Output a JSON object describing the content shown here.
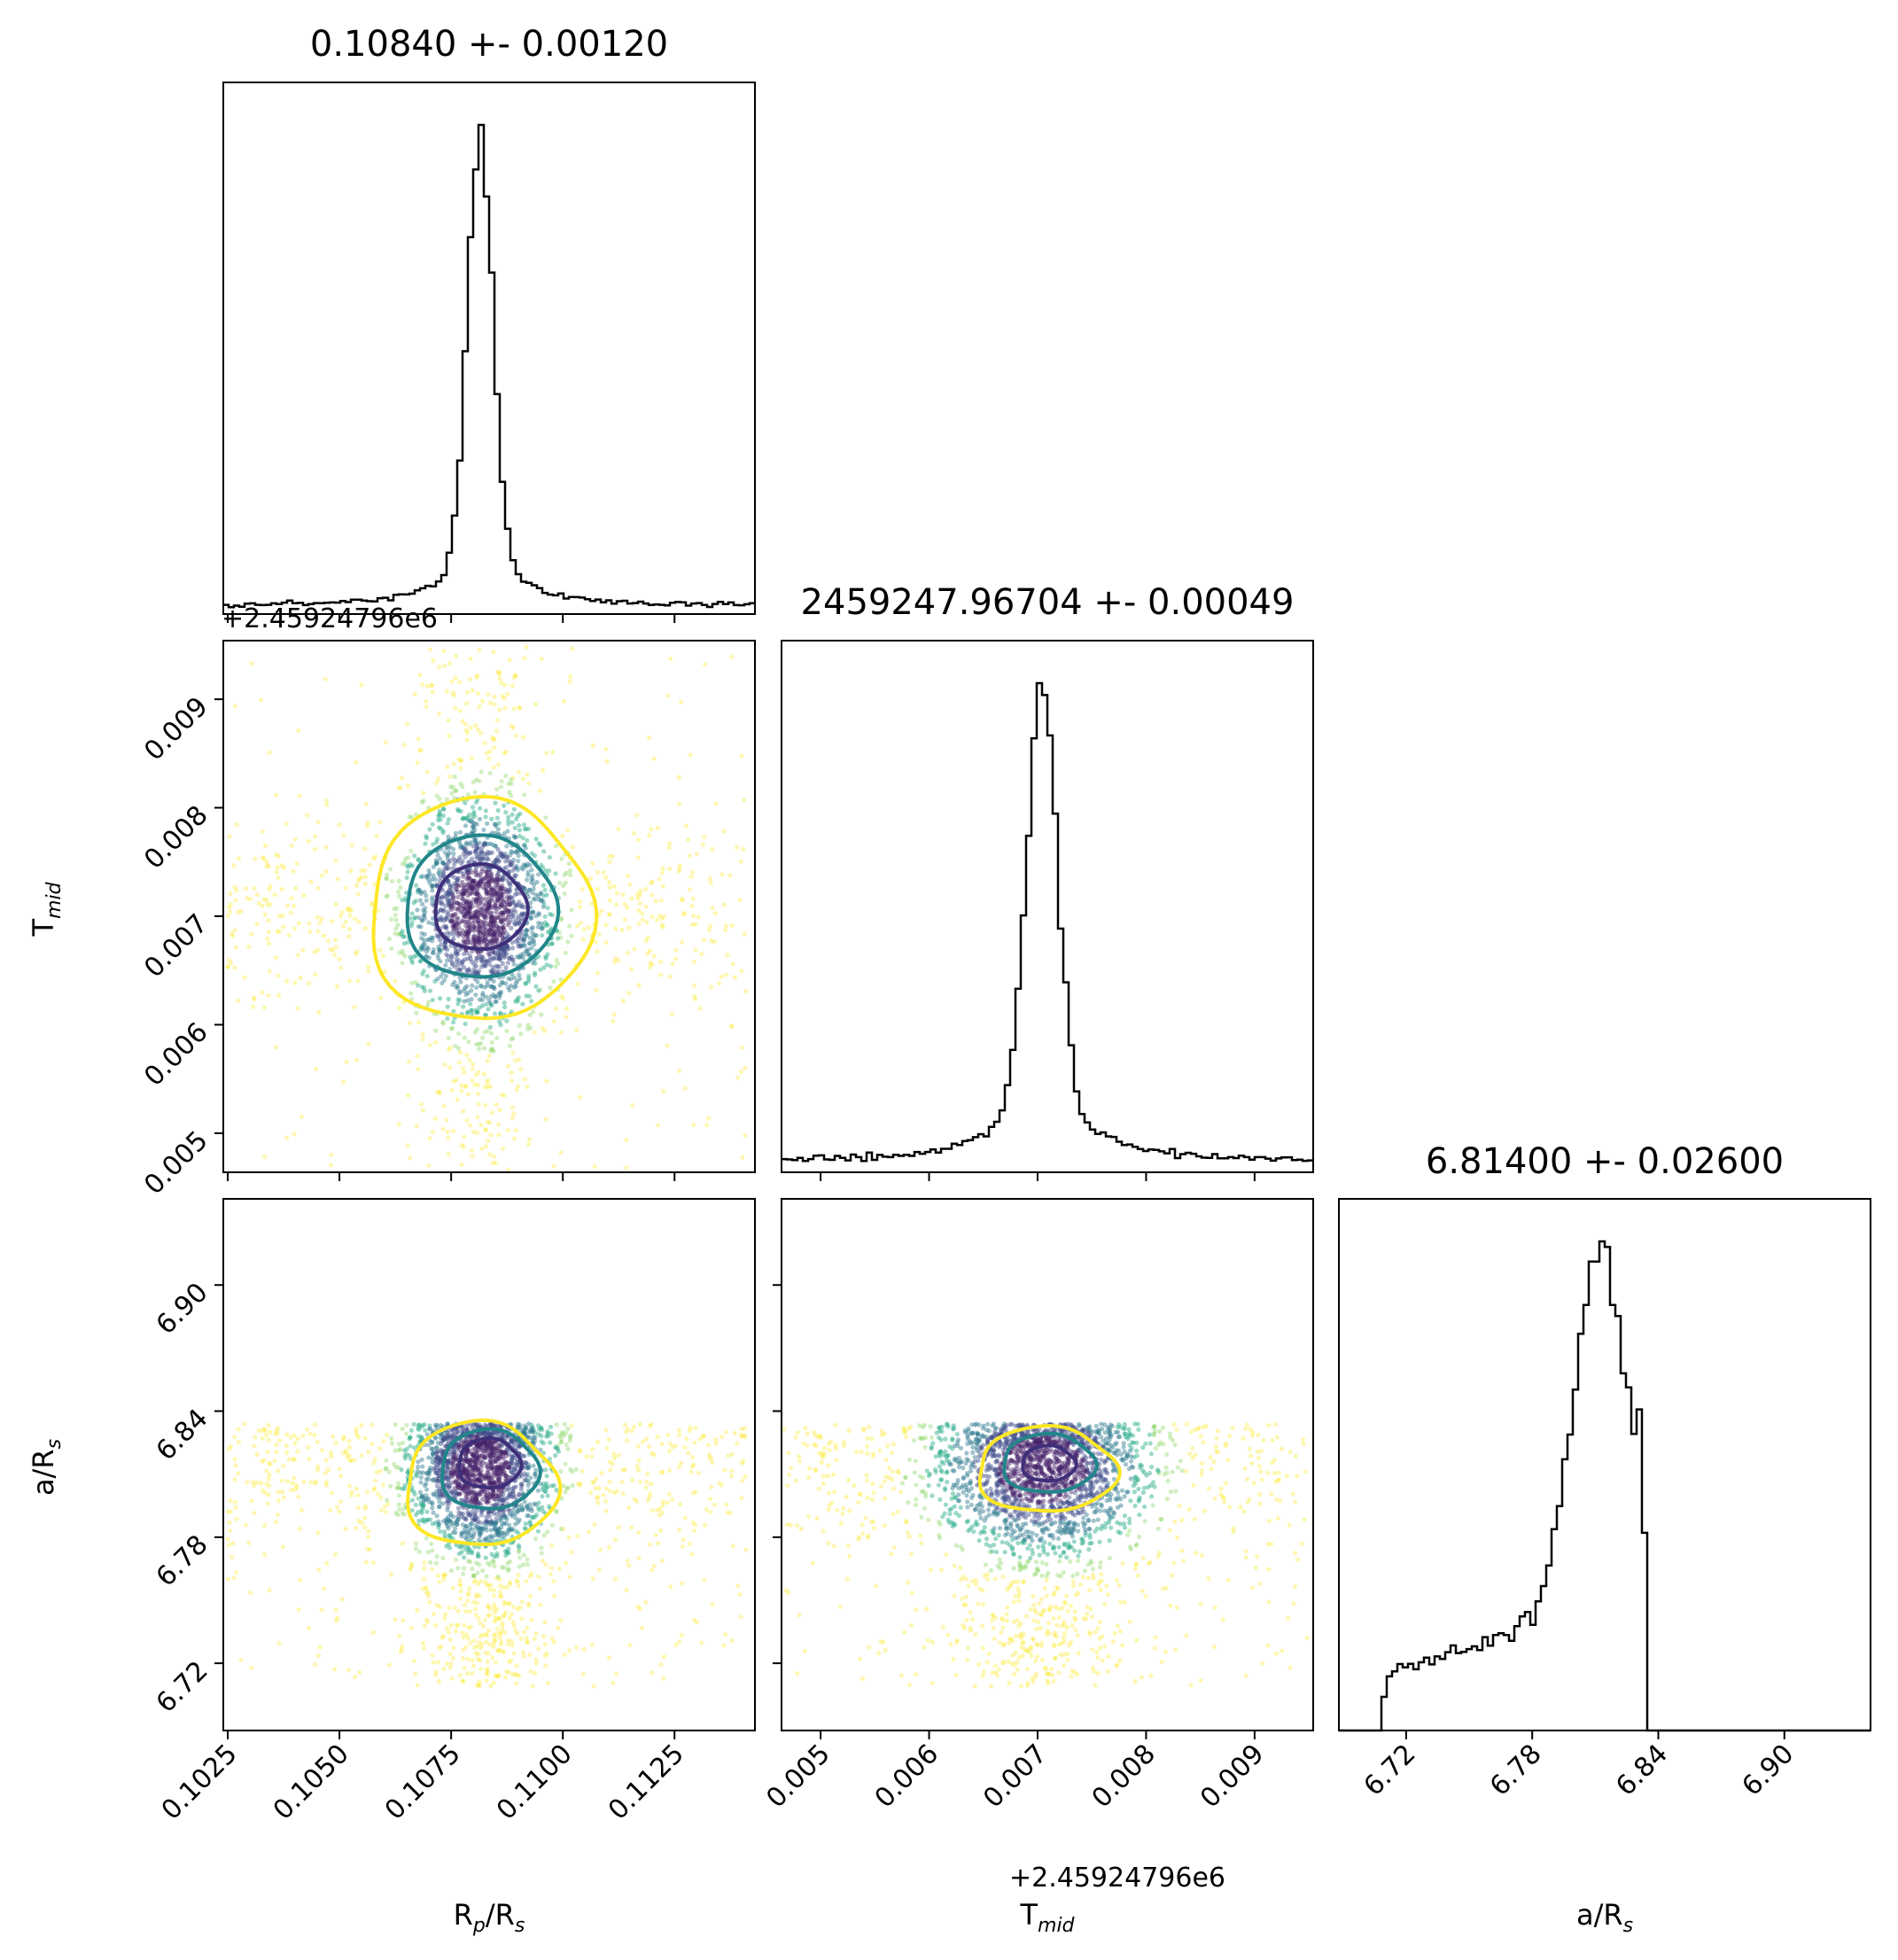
{
  "chart_data": {
    "type": "corner",
    "parameters": [
      {
        "name": "R_p/R_s",
        "label_base": "R",
        "label_sub": "p",
        "label_tail": "/R",
        "label_sub2": "s",
        "range": [
          0.1024,
          0.1143
        ]
      },
      {
        "name": "T_mid",
        "label_base": "T",
        "label_sub": "mid",
        "label_tail": "",
        "label_sub2": "",
        "range": [
          0.00464,
          0.00954
        ],
        "offset_text": "+2.45924796e6"
      },
      {
        "name": "a/R_s",
        "label_base": "a/R",
        "label_sub": "s",
        "label_tail": "",
        "label_sub2": "",
        "range": [
          6.688,
          6.941
        ]
      }
    ],
    "titles": [
      "0.10840 +- 0.00120",
      "2459247.96704 +- 0.00049",
      "6.81400 +- 0.02600"
    ],
    "ticks": {
      "p0": [
        "0.1025",
        "0.1050",
        "0.1075",
        "0.1100",
        "0.1125"
      ],
      "p1": [
        "0.005",
        "0.006",
        "0.007",
        "0.008",
        "0.009"
      ],
      "p2": [
        "6.72",
        "6.78",
        "6.84",
        "6.90"
      ]
    },
    "tick_values": {
      "p0": [
        0.1025,
        0.105,
        0.1075,
        0.11,
        0.1125
      ],
      "p1": [
        0.005,
        0.006,
        0.007,
        0.008,
        0.009
      ],
      "p2": [
        6.72,
        6.78,
        6.84,
        6.9
      ]
    },
    "histograms": [
      {
        "param": 0,
        "peak": 0.10815,
        "width": 0.00028,
        "tail": 0.0019,
        "tail_frac": 0.13,
        "base": 0.03
      },
      {
        "param": 1,
        "peak": 0.00704,
        "width": 0.00014,
        "tail": 0.0009,
        "tail_frac": 0.22,
        "base": 0.03
      },
      {
        "param": 2,
        "values_note": "truncated",
        "support": [
          6.709,
          6.834
        ]
      }
    ],
    "contour_levels_colors": [
      "#3e2f7a",
      "#21868a",
      "#fde725"
    ],
    "point_colormap": "viridis",
    "grid": false
  }
}
